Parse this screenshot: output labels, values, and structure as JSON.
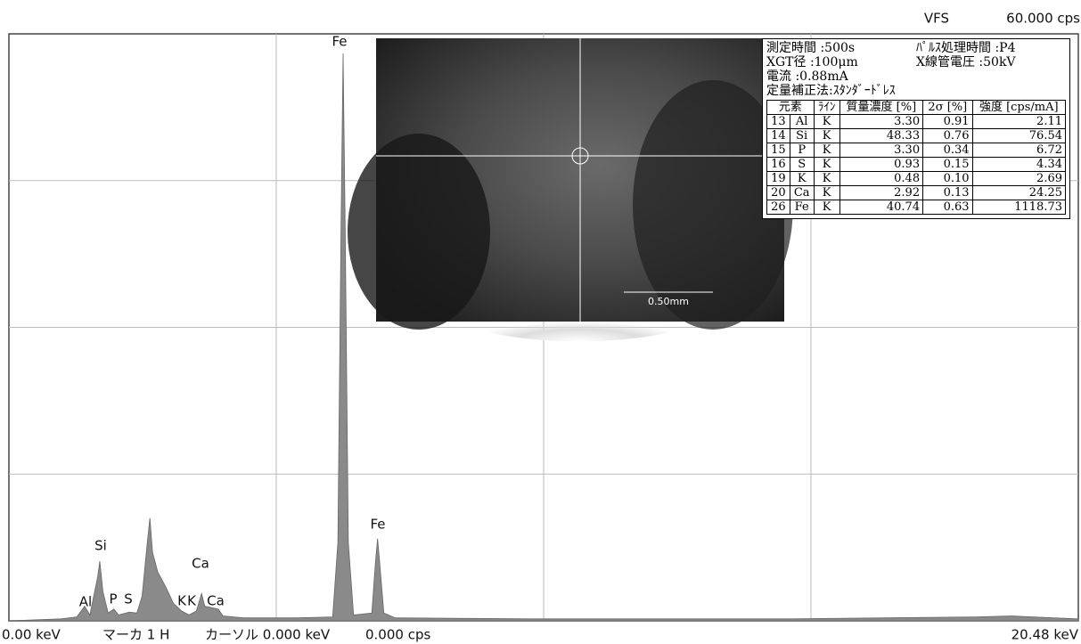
{
  "chart_data": {
    "type": "area",
    "color": "#8a8a8a",
    "x": [
      0,
      1.0,
      1.3,
      1.45,
      1.55,
      1.7,
      1.74,
      1.8,
      1.9,
      2.01,
      2.1,
      2.31,
      2.45,
      2.55,
      2.65,
      2.7,
      2.75,
      2.85,
      3.0,
      3.15,
      3.31,
      3.45,
      3.59,
      3.69,
      3.75,
      4.01,
      4.1,
      4.5,
      5.5,
      6.2,
      6.3,
      6.36,
      6.4,
      6.44,
      6.5,
      6.6,
      6.95,
      7.02,
      7.06,
      7.1,
      7.18,
      7.4,
      10,
      15,
      18.5,
      19.2,
      20,
      20.48
    ],
    "values": [
      0,
      0.2,
      0.4,
      1.5,
      0.6,
      4.5,
      6.1,
      3.0,
      0.8,
      1.2,
      0.6,
      0.9,
      0.8,
      2.5,
      8,
      10.5,
      7,
      5,
      3.5,
      1.8,
      1.0,
      0.6,
      1.0,
      2.8,
      1.5,
      1.2,
      0.5,
      0.3,
      0.3,
      0.4,
      8,
      40,
      58,
      40,
      8,
      0.6,
      0.8,
      6,
      8.4,
      6,
      0.8,
      0.3,
      0.2,
      0.2,
      0.4,
      0.5,
      0.3,
      0.2
    ],
    "xlim": [
      0,
      20.48
    ],
    "ylim": [
      0,
      60
    ],
    "xticks": [
      {
        "value": 0,
        "label": "0.00 keV"
      },
      {
        "value": 20.48,
        "label": "20.48 keV"
      }
    ],
    "yticks": [
      {
        "value": 60,
        "label": "60.000 cps"
      }
    ],
    "xgrid": [
      5.12,
      10.24,
      15.36
    ],
    "ygrid": [
      15,
      30,
      45
    ],
    "grid": true,
    "y_axis_label": "VFS",
    "annotations": [
      "Fe",
      "Fe",
      "Si",
      "Ca",
      "Al",
      "P",
      "S",
      "K",
      "K",
      "Ca"
    ]
  },
  "status": {
    "marker": "マーカ  1 H",
    "cursor": "カーソル  0.000 keV",
    "cursor_value": "0.000 cps"
  },
  "camera": {
    "scale_label": "0.50mm"
  },
  "results": {
    "info": [
      "測定時間 :500s",
      "ﾊﾟﾙｽ処理時間 :P4",
      "XGT径 :100μm",
      "X線管電圧 :50kV",
      "電流 :0.88mA",
      "定量補正法:ｽﾀﾝﾀﾞｰﾄﾞﾚｽ"
    ],
    "header": [
      "元素",
      "ﾗｲﾝ",
      "質量濃度 [%]",
      "2σ [%]",
      "強度 [cps/mA]"
    ],
    "rows": [
      [
        "13",
        "Al",
        "K",
        "3.30",
        "0.91",
        "2.11"
      ],
      [
        "14",
        "Si",
        "K",
        "48.33",
        "0.76",
        "76.54"
      ],
      [
        "15",
        "P",
        "K",
        "3.30",
        "0.34",
        "6.72"
      ],
      [
        "16",
        "S",
        "K",
        "0.93",
        "0.15",
        "4.34"
      ],
      [
        "19",
        "K",
        "K",
        "0.48",
        "0.10",
        "2.69"
      ],
      [
        "20",
        "Ca",
        "K",
        "2.92",
        "0.13",
        "24.25"
      ],
      [
        "26",
        "Fe",
        "K",
        "40.74",
        "0.63",
        "1118.73"
      ]
    ]
  }
}
